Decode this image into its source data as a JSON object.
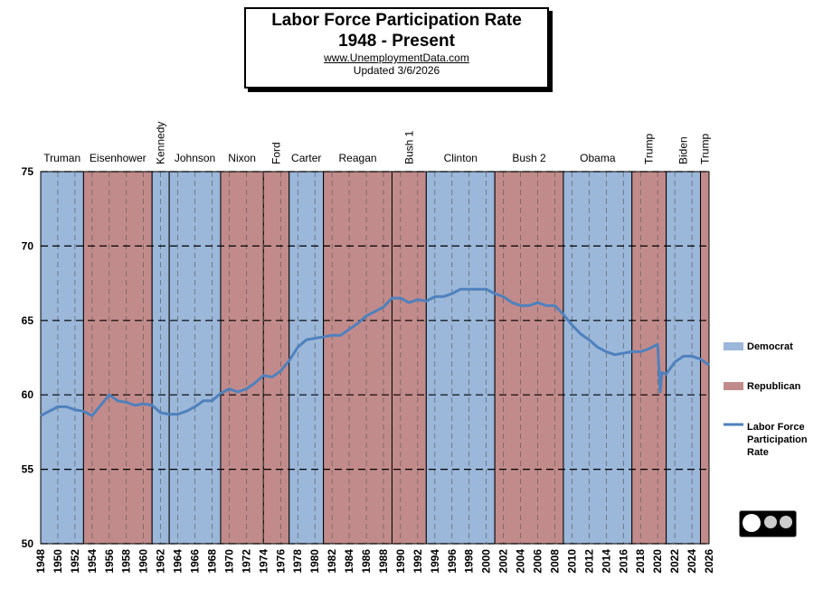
{
  "chart_data": {
    "type": "line",
    "title": "Labor Force Participation Rate",
    "subtitle": "1948 - Present",
    "source": "www.UnemploymentData.com",
    "updated": "Updated 3/6/2026",
    "parties": [
      {
        "name": "Democrat",
        "color": "#9bb7d9"
      },
      {
        "name": "Republican",
        "color": "#c28b8b"
      }
    ],
    "terms": [
      {
        "name": "Truman",
        "party": "Democrat",
        "start": 1948,
        "end": 1953
      },
      {
        "name": "Eisenhower",
        "party": "Republican",
        "start": 1953,
        "end": 1961
      },
      {
        "name": "Kennedy",
        "party": "Democrat",
        "start": 1961,
        "end": 1963
      },
      {
        "name": "Johnson",
        "party": "Democrat",
        "start": 1963,
        "end": 1969
      },
      {
        "name": "Nixon",
        "party": "Republican",
        "start": 1969,
        "end": 1974
      },
      {
        "name": "Ford",
        "party": "Republican",
        "start": 1974,
        "end": 1977
      },
      {
        "name": "Carter",
        "party": "Democrat",
        "start": 1977,
        "end": 1981
      },
      {
        "name": "Reagan",
        "party": "Republican",
        "start": 1981,
        "end": 1989
      },
      {
        "name": "Bush 1",
        "party": "Republican",
        "start": 1989,
        "end": 1993
      },
      {
        "name": "Clinton",
        "party": "Democrat",
        "start": 1993,
        "end": 2001
      },
      {
        "name": "Bush 2",
        "party": "Republican",
        "start": 2001,
        "end": 2009
      },
      {
        "name": "Obama",
        "party": "Democrat",
        "start": 2009,
        "end": 2017
      },
      {
        "name": "Trump",
        "party": "Republican",
        "start": 2017,
        "end": 2021
      },
      {
        "name": "Biden",
        "party": "Democrat",
        "start": 2021,
        "end": 2025
      },
      {
        "name": "Trump",
        "party": "Republican",
        "start": 2025,
        "end": 2026
      }
    ],
    "x": [
      1948,
      1949,
      1950,
      1951,
      1952,
      1953,
      1954,
      1955,
      1956,
      1957,
      1958,
      1959,
      1960,
      1961,
      1962,
      1963,
      1964,
      1965,
      1966,
      1967,
      1968,
      1969,
      1970,
      1971,
      1972,
      1973,
      1974,
      1975,
      1976,
      1977,
      1978,
      1979,
      1980,
      1981,
      1982,
      1983,
      1984,
      1985,
      1986,
      1987,
      1988,
      1989,
      1990,
      1991,
      1992,
      1993,
      1994,
      1995,
      1996,
      1997,
      1998,
      1999,
      2000,
      2001,
      2002,
      2003,
      2004,
      2005,
      2006,
      2007,
      2008,
      2009,
      2010,
      2011,
      2012,
      2013,
      2014,
      2015,
      2016,
      2017,
      2018,
      2019,
      2020,
      2020.3,
      2020.5,
      2021,
      2022,
      2023,
      2024,
      2025,
      2026
    ],
    "series": [
      {
        "name": "Labor Force Participation Rate",
        "color": "#4f81bd",
        "values": [
          58.6,
          58.9,
          59.2,
          59.2,
          59.0,
          58.9,
          58.6,
          59.3,
          60.0,
          59.6,
          59.5,
          59.3,
          59.4,
          59.3,
          58.8,
          58.7,
          58.7,
          58.9,
          59.2,
          59.6,
          59.6,
          60.1,
          60.4,
          60.2,
          60.4,
          60.8,
          61.3,
          61.2,
          61.6,
          62.3,
          63.2,
          63.7,
          63.8,
          63.9,
          64.0,
          64.0,
          64.4,
          64.8,
          65.3,
          65.6,
          65.9,
          66.5,
          66.5,
          66.2,
          66.4,
          66.3,
          66.6,
          66.6,
          66.8,
          67.1,
          67.1,
          67.1,
          67.1,
          66.8,
          66.6,
          66.2,
          66.0,
          66.0,
          66.2,
          66.0,
          66.0,
          65.4,
          64.7,
          64.1,
          63.7,
          63.2,
          62.9,
          62.7,
          62.8,
          62.9,
          62.9,
          63.1,
          63.4,
          60.2,
          61.5,
          61.4,
          62.2,
          62.6,
          62.6,
          62.4,
          62.0
        ]
      }
    ],
    "xlim": [
      1948,
      2026
    ],
    "xticks": [
      1948,
      1950,
      1952,
      1954,
      1956,
      1958,
      1960,
      1962,
      1964,
      1966,
      1968,
      1970,
      1972,
      1974,
      1976,
      1978,
      1980,
      1982,
      1984,
      1986,
      1988,
      1990,
      1992,
      1994,
      1996,
      1998,
      2000,
      2002,
      2004,
      2006,
      2008,
      2010,
      2012,
      2014,
      2016,
      2018,
      2020,
      2022,
      2024,
      2026
    ],
    "ylim": [
      50,
      75
    ],
    "yticks": [
      50,
      55,
      60,
      65,
      70,
      75
    ],
    "grid": true
  }
}
